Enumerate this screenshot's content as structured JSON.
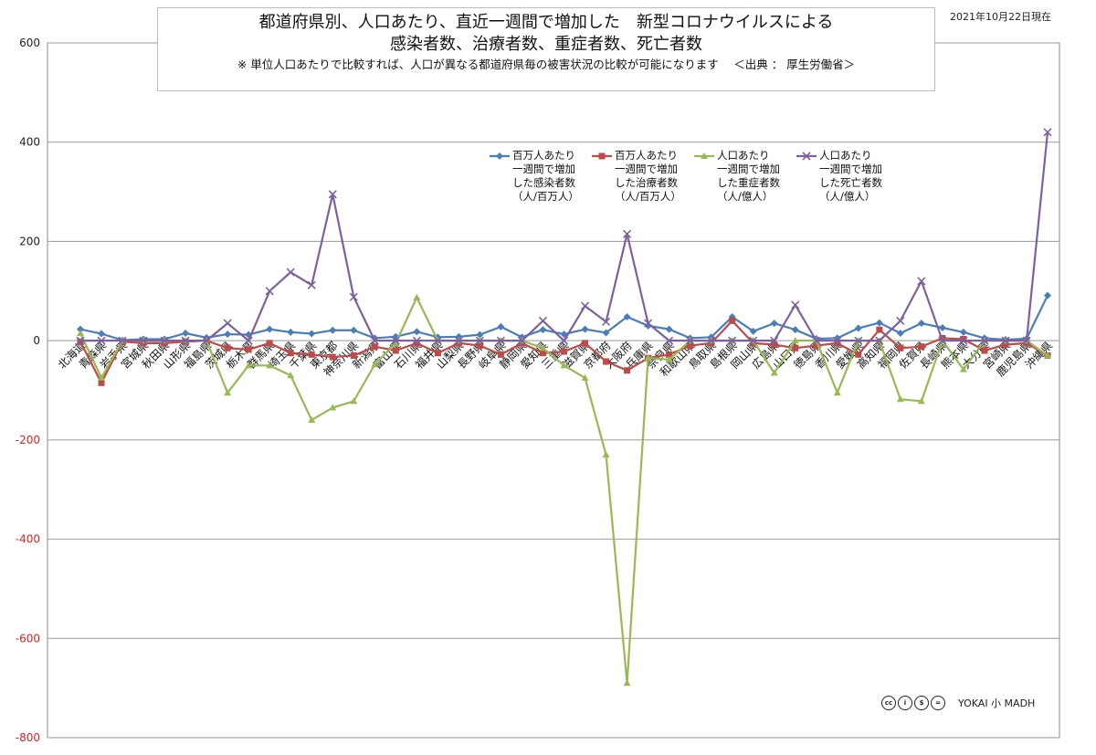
{
  "header": {
    "title_line1": "都道府県別、人口あたり、直近一週間で増加した　新型コロナウイルスによる",
    "title_line2": "感染者数、治療者数、重症者数、死亡者数",
    "subtitle": "※ 単位人口あたりで比較すれば、人口が異なる都道府県毎の被害状況の比較が可能になります　 ＜出典 ： 厚生労働省＞",
    "date": "2021年10月22日現在"
  },
  "footer": {
    "license_icons": [
      "cc-icon",
      "by-icon",
      "nc-icon",
      "nd-icon"
    ],
    "brand": "YOKAI 小 MADH"
  },
  "chart_data": {
    "type": "line",
    "ylim": [
      -800,
      600
    ],
    "yticks": [
      -800,
      -600,
      -400,
      -200,
      0,
      200,
      400,
      600
    ],
    "grid": true,
    "legend_position": "top-right",
    "categories": [
      "北海道",
      "青森県",
      "岩手県",
      "宮城県",
      "秋田県",
      "山形県",
      "福島県",
      "茨城県",
      "栃木県",
      "群馬県",
      "埼玉県",
      "千葉県",
      "東京都",
      "神奈川県",
      "新潟県",
      "富山県",
      "石川県",
      "福井県",
      "山梨県",
      "長野県",
      "岐阜県",
      "静岡県",
      "愛知県",
      "三重県",
      "滋賀県",
      "京都府",
      "大阪府",
      "兵庫県",
      "奈良県",
      "和歌山県",
      "鳥取県",
      "島根県",
      "岡山県",
      "広島県",
      "山口県",
      "徳島県",
      "香川県",
      "愛媛県",
      "高知県",
      "福岡県",
      "佐賀県",
      "長崎県",
      "熊本県",
      "大分県",
      "宮崎県",
      "鹿児島県",
      "沖縄県"
    ],
    "series": [
      {
        "name": "百万人あたり\n一週間で増加\nした感染者数\n（人/百万人）",
        "color": "#4a7ebb",
        "marker": "diamond",
        "values": [
          23,
          14,
          1,
          3,
          3,
          15,
          6,
          13,
          12,
          23,
          17,
          14,
          21,
          21,
          5,
          8,
          18,
          7,
          8,
          12,
          28,
          7,
          22,
          13,
          23,
          16,
          48,
          30,
          23,
          5,
          7,
          48,
          19,
          35,
          22,
          4,
          5,
          25,
          36,
          15,
          35,
          26,
          17,
          5,
          2,
          4,
          91
        ]
      },
      {
        "name": "百万人あたり\n一週間で増加\nした治療者数\n（人/百万人）",
        "color": "#be4b48",
        "marker": "square",
        "values": [
          -2,
          -85,
          -2,
          -5,
          -5,
          -2,
          0,
          -15,
          -18,
          -5,
          -25,
          -28,
          -33,
          -30,
          -12,
          -20,
          -5,
          -25,
          -5,
          -10,
          -28,
          -5,
          -25,
          -22,
          -5,
          -42,
          -60,
          -35,
          -28,
          -10,
          -5,
          40,
          -5,
          -8,
          -15,
          -10,
          -5,
          -28,
          22,
          -15,
          -12,
          5,
          3,
          -20,
          -8,
          -5,
          -30
        ]
      },
      {
        "name": "人口あたり\n一週間で増加\nした重症者数\n（人/億人）",
        "color": "#98b954",
        "marker": "triangle",
        "values": [
          15,
          -75,
          0,
          0,
          0,
          0,
          0,
          -105,
          -50,
          -50,
          -70,
          -160,
          -135,
          -122,
          -48,
          -5,
          87,
          0,
          0,
          0,
          0,
          0,
          -15,
          -50,
          -75,
          -230,
          -690,
          -35,
          -38,
          0,
          0,
          0,
          0,
          -65,
          0,
          0,
          -105,
          0,
          0,
          -118,
          -122,
          0,
          -58,
          0,
          0,
          0,
          -30
        ]
      },
      {
        "name": "人口あたり\n一週間で増加\nした死亡者数\n（人/億人）",
        "color": "#7d60a0",
        "marker": "x",
        "values": [
          0,
          0,
          0,
          0,
          0,
          0,
          0,
          35,
          0,
          100,
          138,
          112,
          295,
          88,
          0,
          0,
          0,
          0,
          0,
          0,
          0,
          0,
          40,
          0,
          70,
          38,
          215,
          35,
          0,
          0,
          0,
          0,
          0,
          0,
          72,
          0,
          0,
          0,
          0,
          40,
          120,
          0,
          0,
          0,
          0,
          0,
          420
        ]
      }
    ]
  }
}
